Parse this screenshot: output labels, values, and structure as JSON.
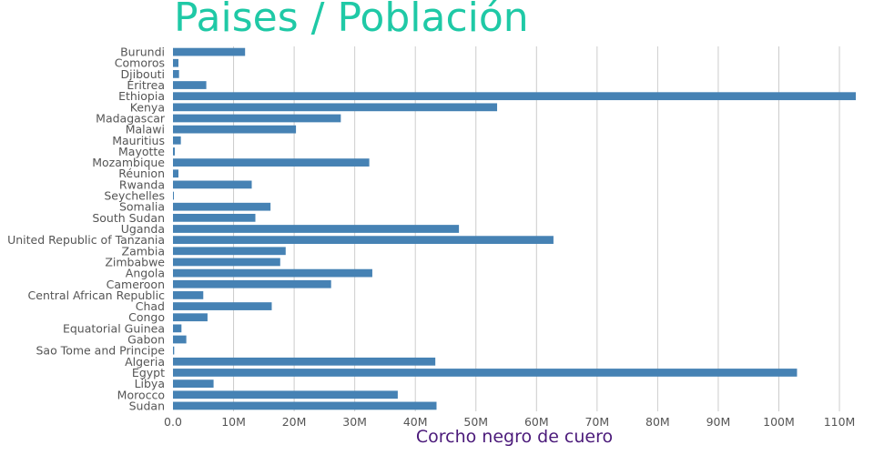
{
  "chart_data": {
    "type": "bar",
    "orientation": "horizontal",
    "title": "Paises / Población",
    "xlabel": "Corcho negro de cuero",
    "ylabel": "",
    "xlim": [
      0,
      112700000
    ],
    "grid": true,
    "bar_color": "#4682b4",
    "title_color": "#1fc9a6",
    "xlabel_color": "#4b1a7a",
    "x_ticks": [
      0,
      10000000,
      20000000,
      30000000,
      40000000,
      50000000,
      60000000,
      70000000,
      80000000,
      90000000,
      100000000,
      110000000
    ],
    "x_tick_labels": [
      "0.0",
      "10M",
      "20M",
      "30M",
      "40M",
      "50M",
      "60M",
      "70M",
      "80M",
      "90M",
      "100M",
      "110M"
    ],
    "categories": [
      "Burundi",
      "Comoros",
      "Djibouti",
      "Eritrea",
      "Ethiopia",
      "Kenya",
      "Madagascar",
      "Malawi",
      "Mauritius",
      "Mayotte",
      "Mozambique",
      "Réunion",
      "Rwanda",
      "Seychelles",
      "Somalia",
      "South Sudan",
      "Uganda",
      "United Republic of Tanzania",
      "Zambia",
      "Zimbabwe",
      "Angola",
      "Cameroon",
      "Central African Republic",
      "Chad",
      "Congo",
      "Equatorial Guinea",
      "Gabon",
      "Sao Tome and Principe",
      "Algeria",
      "Egypt",
      "Libya",
      "Morocco",
      "Sudan"
    ],
    "values": [
      11900000,
      900000,
      1000000,
      5500000,
      112700000,
      53500000,
      27700000,
      20300000,
      1300000,
      300000,
      32400000,
      900000,
      13000000,
      100000,
      16100000,
      13600000,
      47200000,
      62800000,
      18600000,
      17700000,
      32900000,
      26100000,
      5000000,
      16300000,
      5700000,
      1400000,
      2200000,
      200000,
      43300000,
      103000000,
      6700000,
      37100000,
      43500000
    ]
  }
}
